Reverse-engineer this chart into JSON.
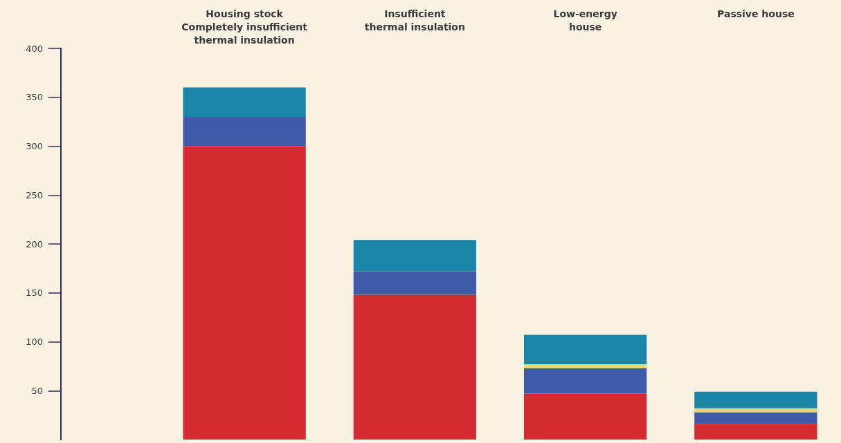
{
  "chart_data": {
    "type": "bar",
    "stacked": true,
    "categories": [
      "Housing stock\nCompletely insufficient\nthermal insulation",
      "Insufficient\nthermal insulation",
      "Low-energy\nhouse",
      "Passive house"
    ],
    "series": [
      {
        "color": "#d42a32",
        "values": [
          300,
          148,
          47,
          16
        ]
      },
      {
        "color": "#3f5aa8",
        "values": [
          30,
          24,
          26,
          12
        ]
      },
      {
        "color": "#e8d870",
        "values": [
          0,
          0,
          4,
          4
        ]
      },
      {
        "color": "#1a85a8",
        "values": [
          30,
          32,
          30,
          17
        ]
      }
    ],
    "ylim": [
      0,
      400
    ],
    "yticks": [
      50,
      100,
      150,
      200,
      250,
      300,
      350,
      400
    ],
    "grid": false
  }
}
